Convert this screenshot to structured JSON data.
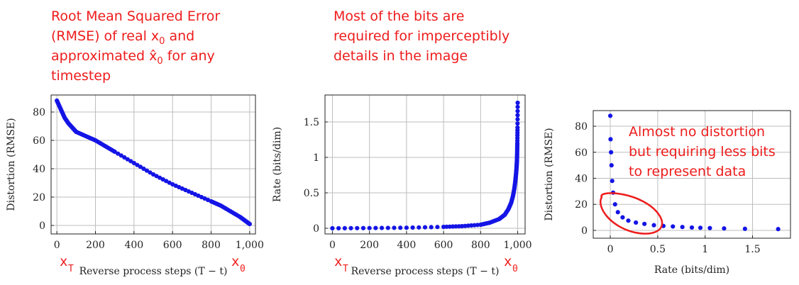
{
  "annotations": {
    "a1": [
      "Root Mean Squared Error",
      "(RMSE) of real x",
      " and",
      "approximated ",
      "x̂",
      " for any",
      "timestep"
    ],
    "a1_sub": "0",
    "a2": [
      "Most of the bits are",
      "required for imperceptibly",
      "details in the image"
    ],
    "a3": [
      "Almost no distortion",
      "but requiring less bits",
      "to represent data"
    ],
    "xT_main": "x",
    "xT_sub": "T",
    "x0_main": "x",
    "x0_sub": "0",
    "annotation_color": "#ee1c1c"
  },
  "chart_data": [
    {
      "type": "scatter",
      "xlabel": "Reverse process steps (T − t)",
      "ylabel": "Distortion (RMSE)",
      "xlim": [
        -30,
        1030
      ],
      "ylim": [
        -6,
        92
      ],
      "xticks": [
        0,
        200,
        400,
        600,
        800,
        1000
      ],
      "xtick_labels": [
        "0",
        "200",
        "400",
        "600",
        "800",
        "1,000"
      ],
      "yticks": [
        0,
        20,
        40,
        60,
        80
      ],
      "grid": true,
      "color": "#1414e6",
      "series": [
        {
          "x": [
            0,
            20,
            40,
            60,
            80,
            100,
            150,
            200,
            250,
            300,
            400,
            500,
            600,
            700,
            800,
            850,
            900,
            950,
            980,
            1000
          ],
          "y": [
            88,
            82,
            76,
            72,
            69,
            66,
            63,
            60,
            56,
            52,
            44,
            36,
            29,
            23,
            17,
            14,
            10,
            6,
            3,
            1
          ]
        }
      ]
    },
    {
      "type": "scatter",
      "xlabel": "Reverse process steps (T − t)",
      "ylabel": "Rate (bits/dim)",
      "xlim": [
        -40,
        1040
      ],
      "ylim": [
        -0.08,
        1.88
      ],
      "xticks": [
        0,
        200,
        400,
        600,
        800,
        1000
      ],
      "xtick_labels": [
        "0",
        "200",
        "400",
        "600",
        "800",
        "1,000"
      ],
      "yticks": [
        0,
        0.5,
        1,
        1.5
      ],
      "ytick_labels": [
        "0",
        "0.5",
        "1",
        "1.5"
      ],
      "grid": true,
      "color": "#1414e6",
      "series": [
        {
          "x": [
            0,
            200,
            400,
            600,
            700,
            800,
            850,
            900,
            930,
            950,
            965,
            975,
            982,
            987,
            991,
            994,
            996,
            997,
            998,
            999,
            1000
          ],
          "y": [
            0,
            0.003,
            0.008,
            0.02,
            0.03,
            0.05,
            0.08,
            0.13,
            0.19,
            0.27,
            0.36,
            0.46,
            0.56,
            0.66,
            0.76,
            0.86,
            0.95,
            1.05,
            1.2,
            1.42,
            1.77
          ]
        }
      ]
    },
    {
      "type": "scatter",
      "xlabel": "Rate (bits/dim)",
      "ylabel": "Distortion (RMSE)",
      "xlim": [
        -0.18,
        1.9
      ],
      "ylim": [
        -6,
        92
      ],
      "xticks": [
        0,
        0.5,
        1,
        1.5
      ],
      "xtick_labels": [
        "0",
        "0.5",
        "1",
        "1.5"
      ],
      "yticks": [
        0,
        20,
        40,
        60,
        80
      ],
      "grid": true,
      "color": "#1414e6",
      "series": [
        {
          "x": [
            0,
            0.003,
            0.008,
            0.013,
            0.02,
            0.03,
            0.05,
            0.08,
            0.13,
            0.19,
            0.27,
            0.36,
            0.46,
            0.56,
            0.66,
            0.76,
            0.86,
            0.95,
            1.05,
            1.2,
            1.42,
            1.77
          ],
          "y": [
            88,
            70,
            60,
            50,
            38,
            29,
            20,
            14,
            10,
            7.5,
            6,
            5,
            4,
            3.4,
            3,
            2.6,
            2.2,
            2,
            1.8,
            1.5,
            1.2,
            1
          ]
        }
      ]
    }
  ]
}
